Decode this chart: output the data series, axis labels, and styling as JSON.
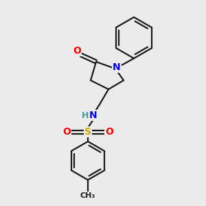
{
  "background_color": "#ebebeb",
  "bond_color": "#1a1a1a",
  "atom_colors": {
    "O": "#ff0000",
    "N": "#0000ff",
    "S": "#ccaa00",
    "H": "#4a9999",
    "C": "#1a1a1a"
  },
  "font_size_atom": 10,
  "fig_size": [
    3.0,
    3.0
  ],
  "dpi": 100
}
